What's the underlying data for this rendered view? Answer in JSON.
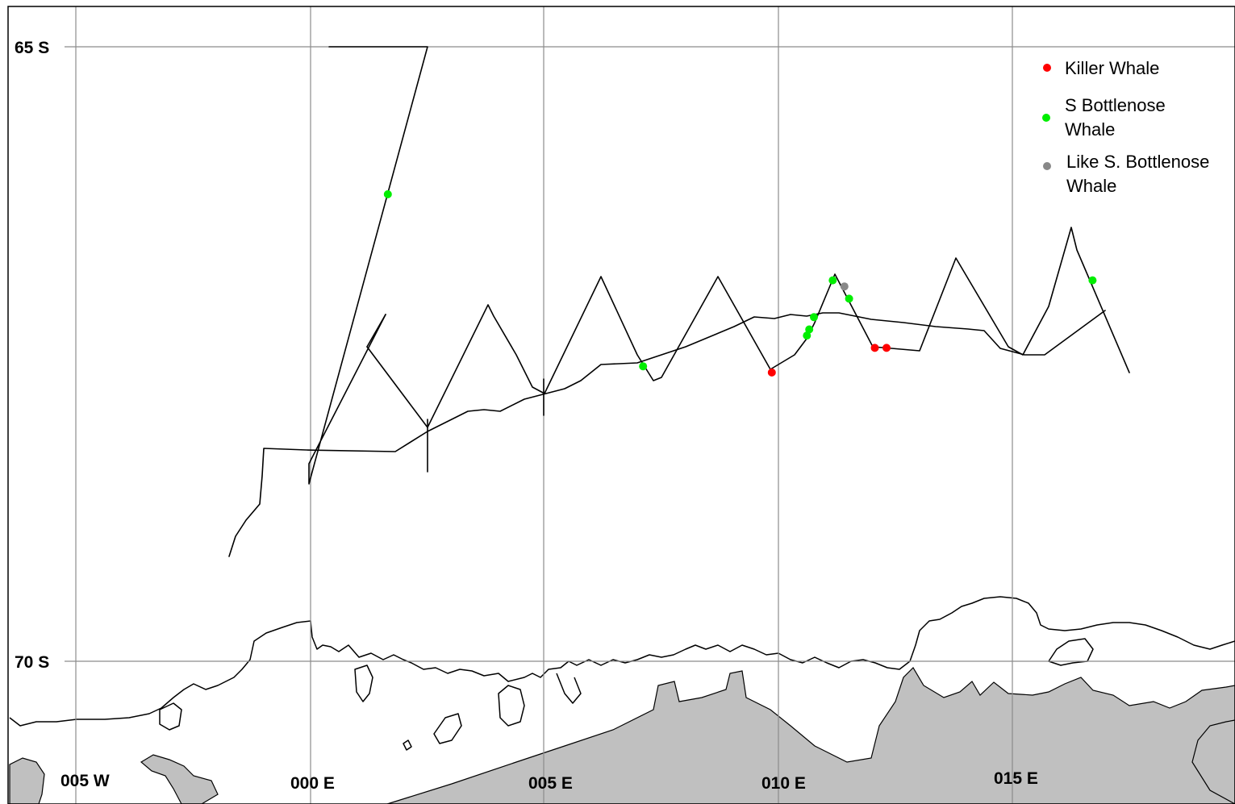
{
  "colors": {
    "killer_whale": "#ff0000",
    "s_bottlenose_whale": "#00ee00",
    "like_s_bottlenose_whale": "#888888",
    "land_ice": "#c0c0c0",
    "grid": "#8c8c8c"
  },
  "axes": {
    "latitude_labels": [
      "65 S",
      "70 S"
    ],
    "longitude_labels": [
      "005 W",
      "000 E",
      "005 E",
      "010 E",
      "015 E"
    ]
  },
  "legend": [
    {
      "key": "killer_whale",
      "lines": [
        "Killer Whale"
      ]
    },
    {
      "key": "s_bottlenose_whale",
      "lines": [
        "S Bottlenose",
        "Whale"
      ]
    },
    {
      "key": "like_s_bottlenose_whale",
      "lines": [
        "Like S. Bottlenose",
        "Whale"
      ]
    }
  ],
  "sightings": [
    {
      "species": "s_bottlenose_whale",
      "lon": 1.65,
      "lat": 66.2
    },
    {
      "species": "s_bottlenose_whale",
      "lon": 7.1,
      "lat": 67.6
    },
    {
      "species": "s_bottlenose_whale",
      "lon": 10.6,
      "lat": 67.35
    },
    {
      "species": "s_bottlenose_whale",
      "lon": 10.65,
      "lat": 67.3
    },
    {
      "species": "s_bottlenose_whale",
      "lon": 10.75,
      "lat": 67.2
    },
    {
      "species": "s_bottlenose_whale",
      "lon": 11.15,
      "lat": 66.9
    },
    {
      "species": "s_bottlenose_whale",
      "lon": 11.5,
      "lat": 67.05
    },
    {
      "species": "s_bottlenose_whale",
      "lon": 16.7,
      "lat": 66.9
    },
    {
      "species": "killer_whale",
      "lon": 9.85,
      "lat": 67.65
    },
    {
      "species": "killer_whale",
      "lon": 12.05,
      "lat": 67.45
    },
    {
      "species": "killer_whale",
      "lon": 12.3,
      "lat": 67.45
    },
    {
      "species": "like_s_bottlenose_whale",
      "lon": 11.4,
      "lat": 66.95
    }
  ]
}
